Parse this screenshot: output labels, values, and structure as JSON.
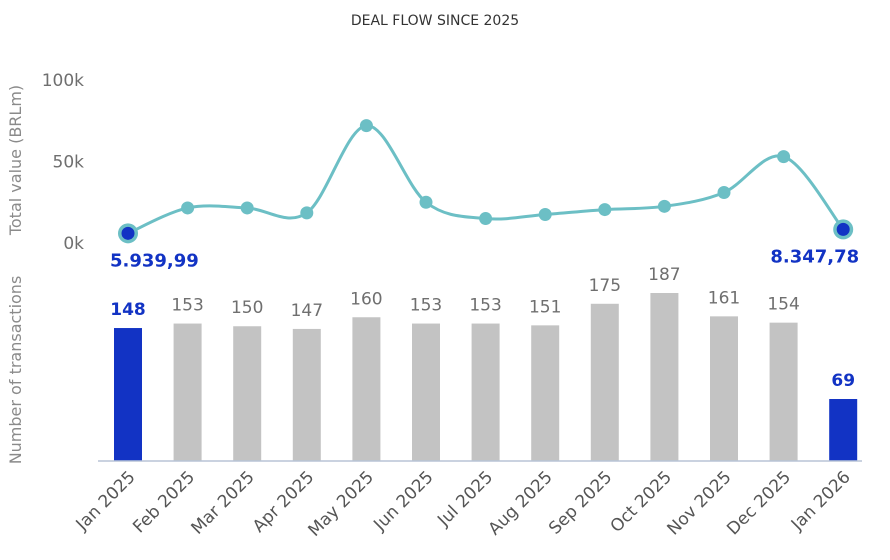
{
  "chart_data": {
    "type": "bar+line",
    "title": "DEAL FLOW SINCE 2025",
    "categories": [
      "Jan 2025",
      "Feb 2025",
      "Mar 2025",
      "Apr 2025",
      "May 2025",
      "Jun 2025",
      "Jul 2025",
      "Aug 2025",
      "Sep 2025",
      "Oct 2025",
      "Nov 2025",
      "Dec 2025",
      "Jan 2026"
    ],
    "line": {
      "ylabel": "Total value (BRLm)",
      "ylim": [
        0,
        100000
      ],
      "yticks": [
        0,
        50000,
        100000
      ],
      "ytick_labels": [
        "0k",
        "50k",
        "100k"
      ],
      "values": [
        5940,
        21500,
        21500,
        18500,
        72000,
        25000,
        15000,
        17500,
        20500,
        22500,
        31000,
        53000,
        8348
      ],
      "highlight_labels": [
        {
          "index": 0,
          "text": "5.939,99"
        },
        {
          "index": 12,
          "text": "8.347,78"
        }
      ],
      "color": "#6cbfc5",
      "highlight_color": "#1233c4"
    },
    "bars": {
      "ylabel": "Number of transactions",
      "values": [
        148,
        153,
        150,
        147,
        160,
        153,
        153,
        151,
        175,
        187,
        161,
        154,
        69
      ],
      "labels": [
        "148",
        "153",
        "150",
        "147",
        "160",
        "153",
        "153",
        "151",
        "175",
        "187",
        "161",
        "154",
        "69"
      ],
      "highlight_indices": [
        0,
        12
      ],
      "color": "#c3c3c3",
      "highlight_color": "#1233c4"
    }
  }
}
